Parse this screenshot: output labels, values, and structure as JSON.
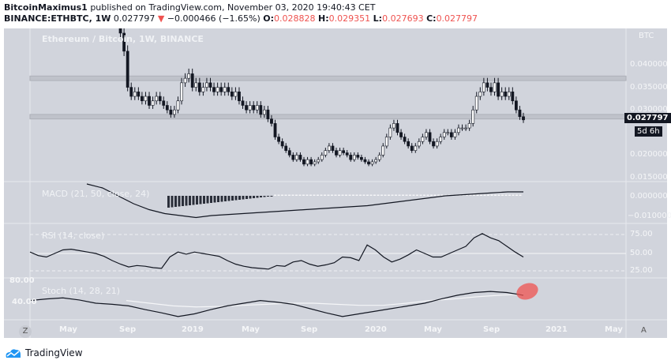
{
  "header": {
    "author": "BitcoinMaximus1",
    "published": "published on TradingView.com, November 03, 2020 19:40:43 CET",
    "symbol": "BINANCE:ETHBTC, 1W",
    "last": "0.027797",
    "change": "−0.000466 (−1.65%)",
    "o_label": "O:",
    "open": "0.028828",
    "h_label": "H:",
    "high": "0.029351",
    "l_label": "L:",
    "low": "0.027693",
    "c_label": "C:",
    "close": "0.027797"
  },
  "chart": {
    "title": "Ethereum / Bitcoin, 1W, BINANCE",
    "currency": "BTC",
    "price_tag": "0.027797",
    "countdown": "5d 6h",
    "price_ticks": [
      "0.040000",
      "0.035000",
      "0.030000",
      "0.020000",
      "0.015000"
    ],
    "macd_label": "MACD (21, 50, close, 24)",
    "macd_ticks": [
      "0.000000",
      "−0.010000"
    ],
    "rsi_label": "RSI (14, close)",
    "rsi_ticks": [
      "75.00",
      "50.00",
      "25.00"
    ],
    "stoch_label": "Stoch (14, 28, 21)",
    "stoch_ticks": [
      "80.00",
      "40.00"
    ],
    "time_ticks": [
      "May",
      "Sep",
      "2019",
      "May",
      "Sep",
      "2020",
      "May",
      "Sep",
      "2021",
      "May"
    ],
    "z_button": "Z",
    "a_button": "A"
  },
  "chart_data": {
    "type": "candlestick",
    "weekly_closes": [
      0.052,
      0.047,
      0.043,
      0.035,
      0.033,
      0.034,
      0.033,
      0.032,
      0.033,
      0.031,
      0.032,
      0.033,
      0.032,
      0.031,
      0.03,
      0.029,
      0.03,
      0.032,
      0.036,
      0.037,
      0.038,
      0.035,
      0.036,
      0.034,
      0.035,
      0.036,
      0.035,
      0.034,
      0.035,
      0.034,
      0.035,
      0.034,
      0.033,
      0.034,
      0.032,
      0.031,
      0.03,
      0.031,
      0.03,
      0.031,
      0.029,
      0.03,
      0.028,
      0.027,
      0.024,
      0.023,
      0.022,
      0.021,
      0.02,
      0.019,
      0.02,
      0.019,
      0.018,
      0.019,
      0.018,
      0.0185,
      0.019,
      0.02,
      0.021,
      0.022,
      0.021,
      0.02,
      0.021,
      0.0205,
      0.02,
      0.019,
      0.02,
      0.0195,
      0.019,
      0.0185,
      0.018,
      0.0185,
      0.019,
      0.02,
      0.022,
      0.024,
      0.026,
      0.027,
      0.025,
      0.024,
      0.023,
      0.022,
      0.021,
      0.022,
      0.023,
      0.024,
      0.025,
      0.023,
      0.022,
      0.023,
      0.024,
      0.025,
      0.025,
      0.024,
      0.025,
      0.026,
      0.026,
      0.026,
      0.027,
      0.03,
      0.033,
      0.034,
      0.036,
      0.035,
      0.034,
      0.036,
      0.033,
      0.034,
      0.033,
      0.034,
      0.032,
      0.03,
      0.0285,
      0.027797
    ],
    "zones": [
      [
        0.0365,
        0.0375
      ],
      [
        0.028,
        0.029
      ]
    ],
    "rsi": [
      52,
      47,
      45,
      50,
      55,
      56,
      54,
      52,
      50,
      46,
      40,
      35,
      31,
      33,
      32,
      30,
      29,
      45,
      52,
      49,
      52,
      50,
      48,
      46,
      40,
      35,
      32,
      30,
      29,
      28,
      33,
      32,
      38,
      40,
      35,
      32,
      34,
      37,
      45,
      44,
      40,
      62,
      55,
      45,
      38,
      42,
      48,
      55,
      50,
      45,
      45,
      50,
      55,
      60,
      72,
      78,
      72,
      68,
      60,
      52,
      45
    ],
    "macd": [
      0.006,
      0.004,
      0.0,
      -0.004,
      -0.007,
      -0.009,
      -0.01,
      -0.011,
      -0.01,
      -0.0095,
      -0.009,
      -0.0085,
      -0.008,
      -0.0075,
      -0.007,
      -0.0065,
      -0.006,
      -0.0055,
      -0.005,
      -0.004,
      -0.003,
      -0.002,
      -0.001,
      0.0,
      0.0005,
      0.001,
      0.0015,
      0.002,
      0.002
    ],
    "stoch_k": [
      45,
      48,
      50,
      46,
      40,
      38,
      35,
      28,
      22,
      15,
      20,
      28,
      35,
      40,
      45,
      42,
      38,
      30,
      22,
      15,
      20,
      25,
      30,
      35,
      40,
      48,
      55,
      60,
      62,
      60,
      55
    ],
    "stoch_d": [
      45,
      40,
      35,
      33,
      34,
      36,
      38,
      40,
      40,
      38,
      36,
      36,
      40,
      45,
      48,
      52,
      55,
      57
    ],
    "colors": {
      "up": "#ffffff",
      "down": "#131722",
      "highlight": "#ef5350"
    }
  },
  "footer": {
    "brand": "TradingView"
  }
}
